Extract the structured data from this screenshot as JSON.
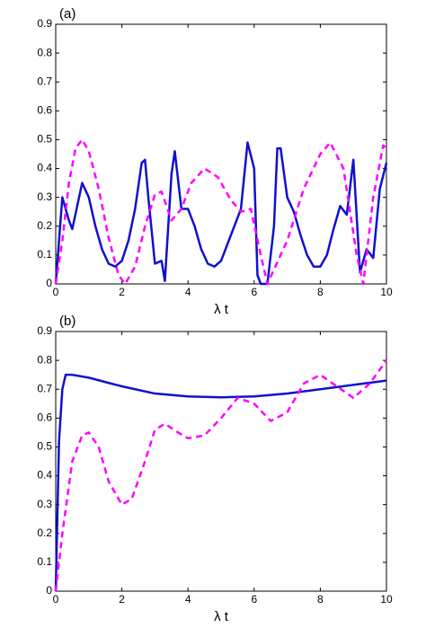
{
  "chart_data": [
    {
      "type": "line",
      "label": "(a)",
      "xlabel": "λ t",
      "xlim": [
        0,
        10
      ],
      "ylim": [
        0,
        0.9
      ],
      "xticks": [
        0,
        2,
        4,
        6,
        8,
        10
      ],
      "yticks": [
        0,
        0.1,
        0.2,
        0.3,
        0.4,
        0.5,
        0.6,
        0.7,
        0.8,
        0.9
      ],
      "series": [
        {
          "color": "#1010d0",
          "dashed": false,
          "x": [
            0,
            0.2,
            0.4,
            0.5,
            0.8,
            1.0,
            1.2,
            1.4,
            1.6,
            1.8,
            2.0,
            2.2,
            2.4,
            2.6,
            2.7,
            2.8,
            3.0,
            3.2,
            3.3,
            3.5,
            3.6,
            3.8,
            4.0,
            4.2,
            4.4,
            4.6,
            4.8,
            5.0,
            5.2,
            5.4,
            5.6,
            5.8,
            6.0,
            6.1,
            6.2,
            6.4,
            6.6,
            6.7,
            6.8,
            7.0,
            7.2,
            7.4,
            7.6,
            7.8,
            8.0,
            8.2,
            8.4,
            8.6,
            8.8,
            9.0,
            9.2,
            9.4,
            9.6,
            9.8,
            10
          ],
          "values": [
            0,
            0.3,
            0.22,
            0.19,
            0.35,
            0.3,
            0.2,
            0.12,
            0.07,
            0.06,
            0.08,
            0.15,
            0.26,
            0.42,
            0.43,
            0.3,
            0.07,
            0.08,
            0.01,
            0.38,
            0.46,
            0.26,
            0.26,
            0.2,
            0.12,
            0.07,
            0.06,
            0.08,
            0.14,
            0.2,
            0.26,
            0.49,
            0.4,
            0.03,
            0.0,
            0.0,
            0.2,
            0.47,
            0.47,
            0.3,
            0.25,
            0.17,
            0.1,
            0.06,
            0.06,
            0.1,
            0.19,
            0.27,
            0.24,
            0.43,
            0.04,
            0.12,
            0.09,
            0.33,
            0.42
          ]
        },
        {
          "color": "#ff00ff",
          "dashed": true,
          "x": [
            0,
            0.2,
            0.4,
            0.6,
            0.8,
            1.0,
            1.3,
            1.6,
            1.9,
            2.1,
            2.4,
            2.7,
            3.0,
            3.2,
            3.5,
            3.8,
            4.1,
            4.5,
            4.9,
            5.3,
            5.6,
            5.9,
            6.2,
            6.4,
            7.0,
            7.5,
            8.0,
            8.3,
            8.7,
            9.1,
            9.3,
            9.6,
            9.9,
            10
          ],
          "values": [
            0,
            0.15,
            0.35,
            0.47,
            0.5,
            0.46,
            0.33,
            0.16,
            0.03,
            0,
            0.06,
            0.2,
            0.31,
            0.32,
            0.22,
            0.26,
            0.35,
            0.4,
            0.37,
            0.29,
            0.25,
            0.26,
            0.1,
            0,
            0.15,
            0.33,
            0.45,
            0.49,
            0.4,
            0.1,
            0,
            0.3,
            0.48,
            0.47
          ]
        }
      ]
    },
    {
      "type": "line",
      "label": "(b)",
      "xlabel": "λ t",
      "xlim": [
        0,
        10
      ],
      "ylim": [
        0,
        0.9
      ],
      "xticks": [
        0,
        2,
        4,
        6,
        8,
        10
      ],
      "yticks": [
        0,
        0.1,
        0.2,
        0.3,
        0.4,
        0.5,
        0.6,
        0.7,
        0.8,
        0.9
      ],
      "series": [
        {
          "color": "#1010d0",
          "dashed": false,
          "x": [
            0,
            0.1,
            0.2,
            0.3,
            0.5,
            1,
            2,
            3,
            4,
            5,
            6,
            7,
            8,
            9,
            10
          ],
          "values": [
            0,
            0.52,
            0.7,
            0.75,
            0.75,
            0.74,
            0.71,
            0.685,
            0.675,
            0.672,
            0.675,
            0.685,
            0.7,
            0.715,
            0.73
          ]
        },
        {
          "color": "#ff00ff",
          "dashed": true,
          "x": [
            0,
            0.2,
            0.5,
            0.8,
            1.0,
            1.3,
            1.6,
            2.0,
            2.3,
            2.7,
            3.0,
            3.3,
            3.7,
            4.0,
            4.5,
            5.0,
            5.5,
            6.0,
            6.5,
            7.0,
            7.5,
            8.0,
            8.5,
            9.0,
            9.5,
            10
          ],
          "values": [
            0,
            0.2,
            0.45,
            0.54,
            0.55,
            0.5,
            0.38,
            0.3,
            0.32,
            0.45,
            0.56,
            0.58,
            0.55,
            0.53,
            0.54,
            0.6,
            0.67,
            0.65,
            0.59,
            0.62,
            0.72,
            0.75,
            0.71,
            0.67,
            0.72,
            0.8
          ]
        }
      ]
    }
  ]
}
